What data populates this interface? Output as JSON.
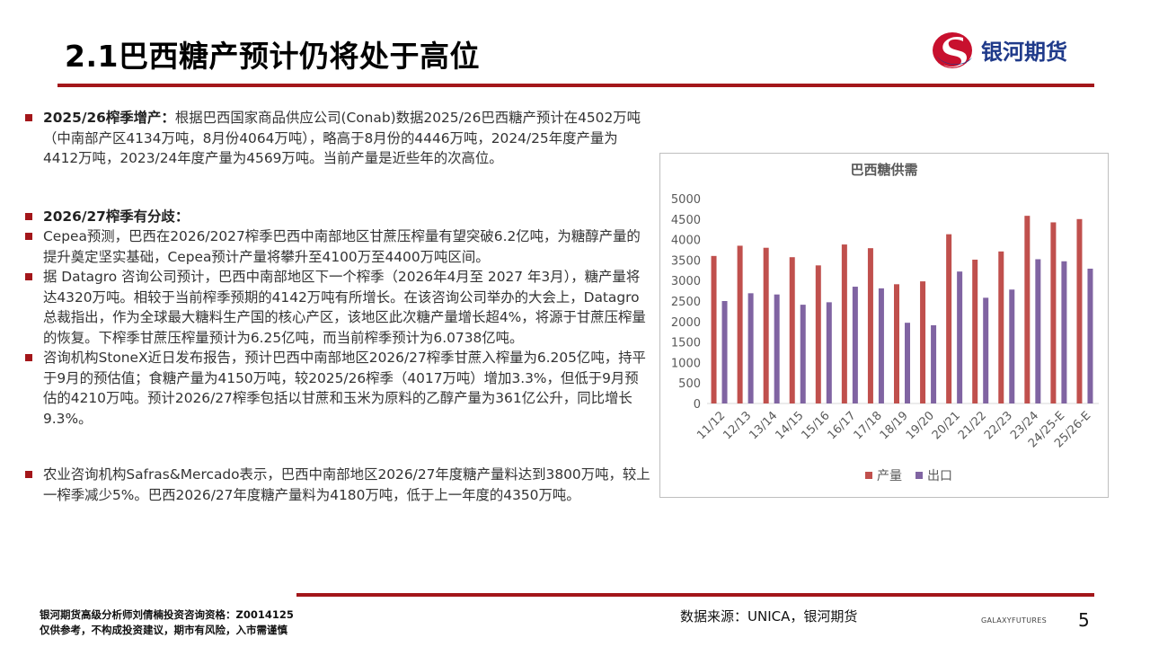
{
  "title": "2.1巴西糖产预计仍将处于高位",
  "brand": {
    "name": "银河期货",
    "colors": {
      "red": "#a3161a",
      "blue": "#1f3a8a"
    }
  },
  "paragraphs": {
    "p1": {
      "label": "2025/26榨季增产：",
      "text": "根据巴西国家商品供应公司(Conab)数据2025/26巴西糖产预计在4502万吨（中南部产区4134万吨，8月份4064万吨），略高于8月份的4446万吨，2024/25年度产量为4412万吨，2023/24年度产量为4569万吨。当前产量是近些年的次高位。"
    },
    "p2": {
      "label": "2026/27榨季有分歧："
    },
    "p3": {
      "text": "Cepea预测，巴西在2026/2027榨季巴西中南部地区甘蔗压榨量有望突破6.2亿吨，为糖醇产量的提升奠定坚实基础，Cepea预计产量将攀升至4100万至4400万吨区间。"
    },
    "p4": {
      "text": "据 Datagro 咨询公司预计，巴西中南部地区下一个榨季（2026年4月至 2027 年3月），糖产量将达4320万吨。相较于当前榨季预期的4142万吨有所增长。在该咨询公司举办的大会上，Datagro 总裁指出，作为全球最大糖料生产国的核心产区，该地区此次糖产量增长超4%，将源于甘蔗压榨量的恢复。下榨季甘蔗压榨量预计为6.25亿吨，而当前榨季预计为6.0738亿吨。"
    },
    "p5": {
      "text": "咨询机构StoneX近日发布报告，预计巴西中南部地区2026/27榨季甘蔗入榨量为6.205亿吨，持平于9月的预估值；食糖产量为4150万吨，较2025/26榨季（4017万吨）增加3.3%，但低于9月预估的4210万吨。预计2026/27榨季包括以甘蔗和玉米为原料的乙醇产量为361亿公升，同比增长9.3%。"
    },
    "p6": {
      "text": "农业咨询机构Safras&Mercado表示，巴西中南部地区2026/27年度糖产量料达到3800万吨，较上一榨季减少5%。巴西2026/27年度糖产量料为4180万吨，低于上一年度的4350万吨。"
    }
  },
  "chart_data": {
    "type": "bar",
    "title": "巴西糖供需",
    "categories": [
      "11/12",
      "12/13",
      "13/14",
      "14/15",
      "15/16",
      "16/17",
      "17/18",
      "18/19",
      "19/20",
      "20/21",
      "21/22",
      "22/23",
      "23/24",
      "24/25-E",
      "25/26-E"
    ],
    "series": [
      {
        "name": "产量",
        "color": "#c0504d",
        "values": [
          3600,
          3850,
          3800,
          3570,
          3370,
          3880,
          3790,
          2910,
          2980,
          4130,
          3510,
          3710,
          4580,
          4420,
          4500
        ]
      },
      {
        "name": "出口",
        "color": "#8064a2",
        "values": [
          2500,
          2690,
          2660,
          2410,
          2470,
          2850,
          2810,
          1970,
          1910,
          3220,
          2580,
          2780,
          3520,
          3470,
          3290
        ]
      }
    ],
    "y_ticks": [
      "0",
      "500",
      "1000",
      "1500",
      "2000",
      "2500",
      "3000",
      "3500",
      "4000",
      "4500",
      "5000"
    ],
    "ylim": [
      0,
      5000
    ],
    "legend_position": "bottom",
    "grid": false
  },
  "footer": {
    "source": "数据来源：UNICA，银河期货",
    "brand_en": "GALAXYFUTURES",
    "page": "5",
    "disclaimer_line1": "银河期货高级分析师刘倩楠投资咨询资格：Z0014125",
    "disclaimer_line2": "仅供参考，不构成投资建议，期市有风险，入市需谨慎"
  }
}
